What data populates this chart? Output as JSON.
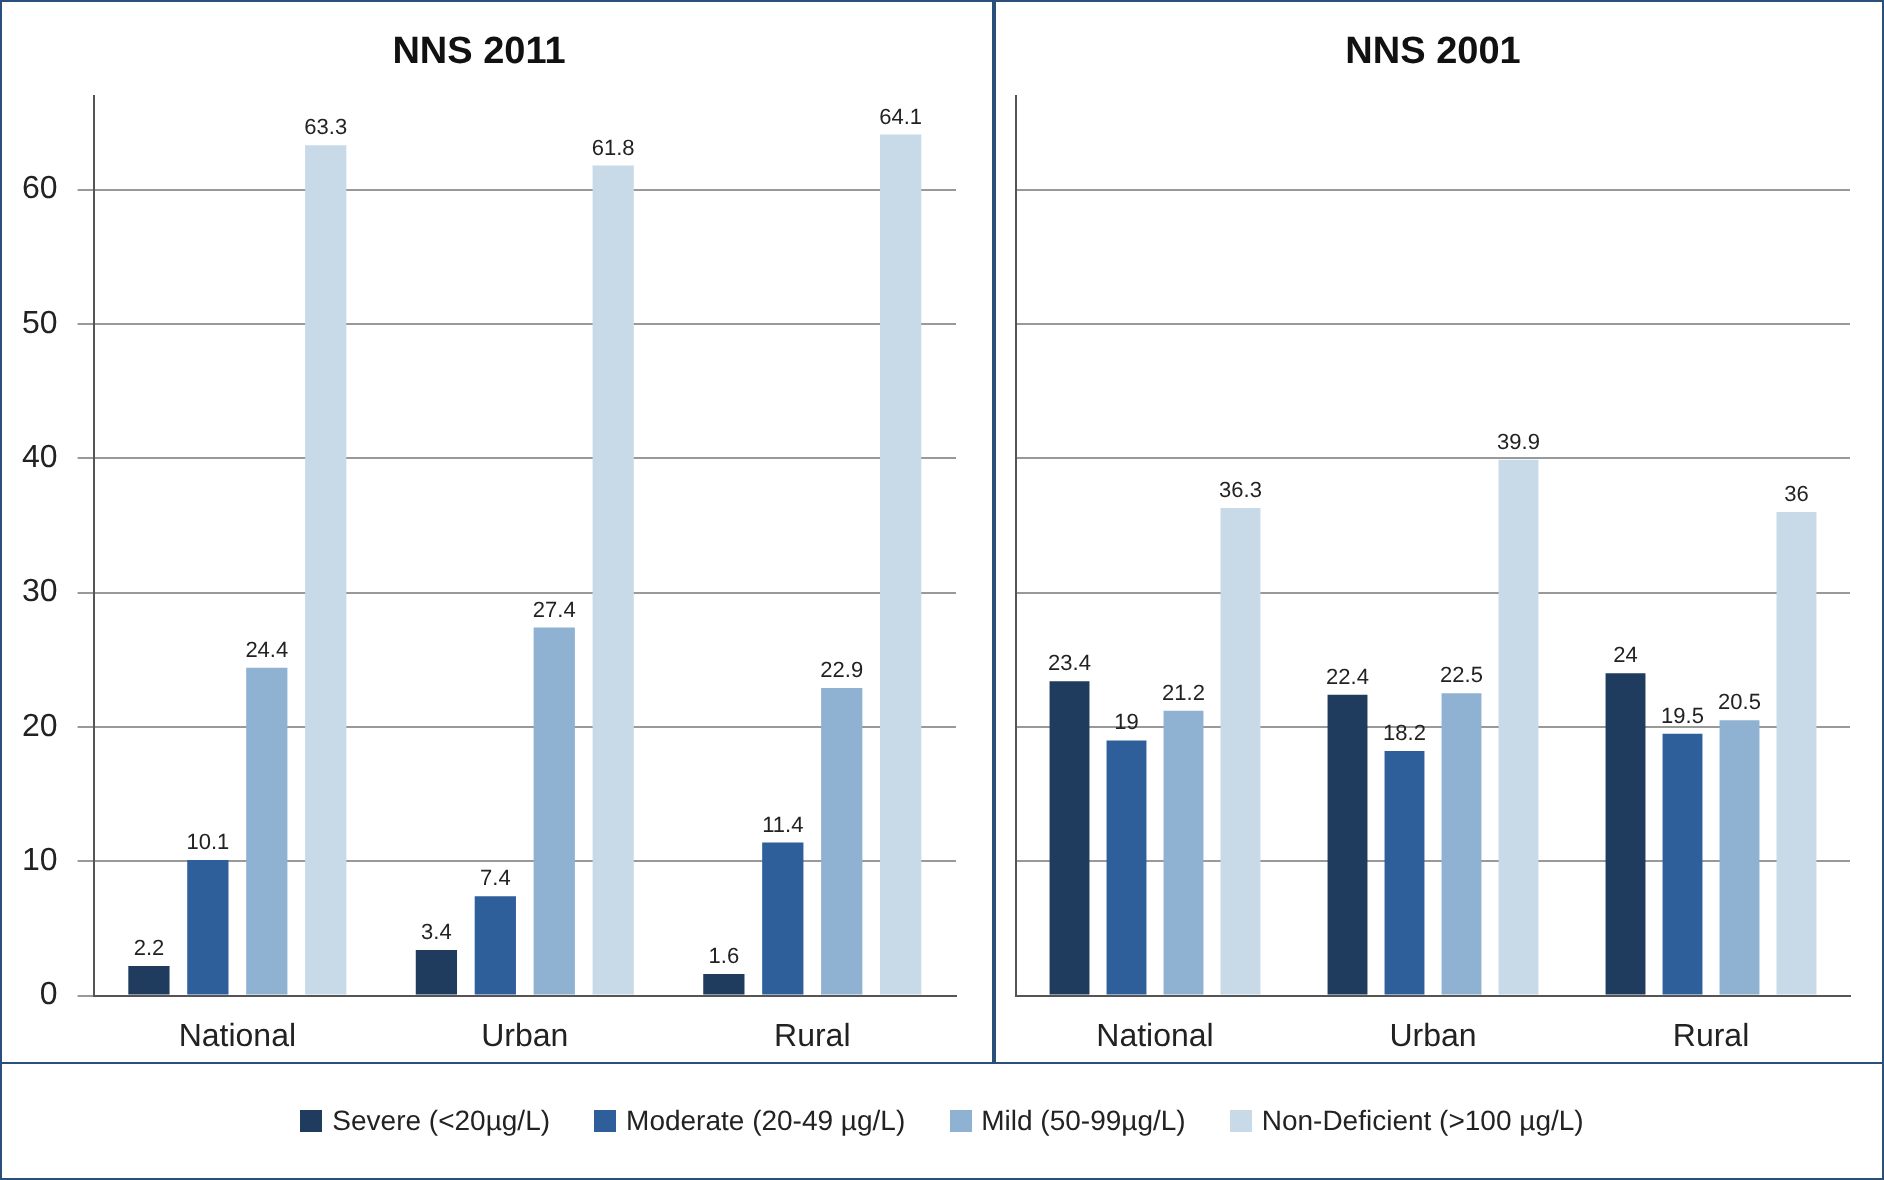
{
  "chart_data": [
    {
      "type": "bar",
      "title": "NNS 2011",
      "categories": [
        "National",
        "Urban",
        "Rural"
      ],
      "series": [
        {
          "name": "Severe (<20µg/L)",
          "color": "#1f3b5e",
          "values": [
            2.2,
            3.4,
            1.6
          ]
        },
        {
          "name": "Moderate (20-49 µg/L)",
          "color": "#2e5f9a",
          "values": [
            10.1,
            7.4,
            11.4
          ]
        },
        {
          "name": "Mild (50-99µg/L)",
          "color": "#8fb2d3",
          "values": [
            24.4,
            27.4,
            22.9
          ]
        },
        {
          "name": "Non-Deficient (>100 µg/L)",
          "color": "#c8d9e8",
          "values": [
            63.3,
            61.8,
            64.1
          ]
        }
      ],
      "ylim": [
        0,
        67
      ],
      "yticks": [
        0,
        10,
        20,
        30,
        40,
        50,
        60
      ],
      "grid": "y",
      "data_labels": true,
      "legend": "bottom"
    },
    {
      "type": "bar",
      "title": "NNS 2001",
      "categories": [
        "National",
        "Urban",
        "Rural"
      ],
      "series": [
        {
          "color": "#1f3b5e",
          "values": [
            23.4,
            22.4,
            24
          ]
        },
        {
          "color": "#2e5f9a",
          "values": [
            19,
            18.2,
            19.5
          ]
        },
        {
          "color": "#8fb2d3",
          "values": [
            21.2,
            22.5,
            20.5
          ]
        },
        {
          "color": "#c8d9e8",
          "values": [
            36.3,
            39.9,
            36
          ]
        }
      ],
      "ylim": [
        0,
        67
      ],
      "yticks": [
        0,
        10,
        20,
        30,
        40,
        50,
        60
      ],
      "grid": "y",
      "data_labels": true,
      "tick_labels": "x"
    }
  ]
}
